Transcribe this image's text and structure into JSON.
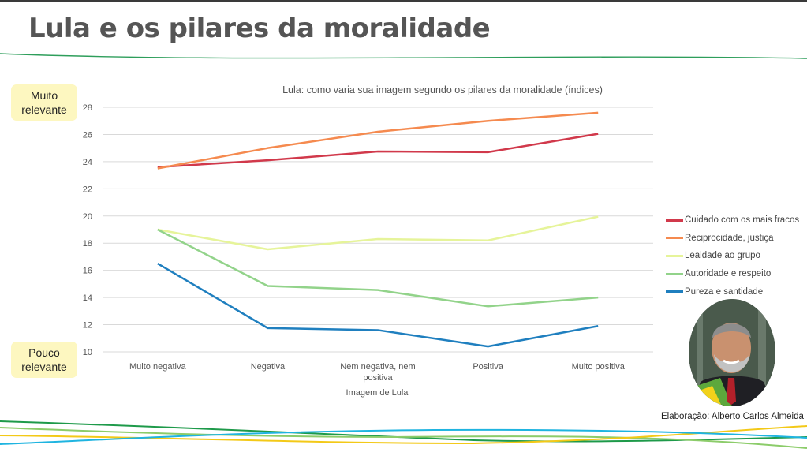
{
  "header": {
    "title": "Lula e os pilares da moralidade"
  },
  "notes": {
    "high": [
      "Muito",
      "relevante"
    ],
    "low": [
      "Pouco",
      "relevante"
    ]
  },
  "photo": {
    "alt": "Retrato de Lula"
  },
  "credit": "Elaboração: Alberto Carlos Almeida",
  "colors": {
    "title": "#555555",
    "note_bg": "#fdf7c0",
    "grid": "#d9d9d9"
  },
  "chart_data": {
    "type": "line",
    "title": "Lula: como varia sua imagem segundo os pilares da moralidade (índices)",
    "xlabel": "Imagem de Lula",
    "ylabel": "",
    "categories": [
      "Muito negativa",
      "Negativa",
      "Nem negativa, nem positiva",
      "Positiva",
      "Muito positiva"
    ],
    "category_lines": [
      [
        "Muito negativa"
      ],
      [
        "Negativa"
      ],
      [
        "Nem negativa, nem",
        "positiva"
      ],
      [
        "Positiva"
      ],
      [
        "Muito positiva"
      ]
    ],
    "ylim": [
      10,
      28
    ],
    "yticks": [
      10,
      12,
      14,
      16,
      18,
      20,
      22,
      24,
      26,
      28
    ],
    "grid": true,
    "legend_position": "right",
    "series": [
      {
        "name": "Cuidado com os mais fracos",
        "color": "#d1394b",
        "values": [
          23.6,
          24.1,
          24.75,
          24.7,
          26.05
        ]
      },
      {
        "name": "Reciprocidade, justiça",
        "color": "#f58a4f",
        "values": [
          23.5,
          25.0,
          26.2,
          27.0,
          27.6
        ]
      },
      {
        "name": "Lealdade ao grupo",
        "color": "#e6f49a",
        "values": [
          19.0,
          17.55,
          18.3,
          18.2,
          19.95
        ]
      },
      {
        "name": "Autoridade e respeito",
        "color": "#92d38a",
        "values": [
          19.0,
          14.85,
          14.55,
          13.35,
          14.0
        ]
      },
      {
        "name": "Pureza e santidade",
        "color": "#1f7fbf",
        "values": [
          16.5,
          11.75,
          11.6,
          10.4,
          11.9
        ]
      }
    ]
  }
}
